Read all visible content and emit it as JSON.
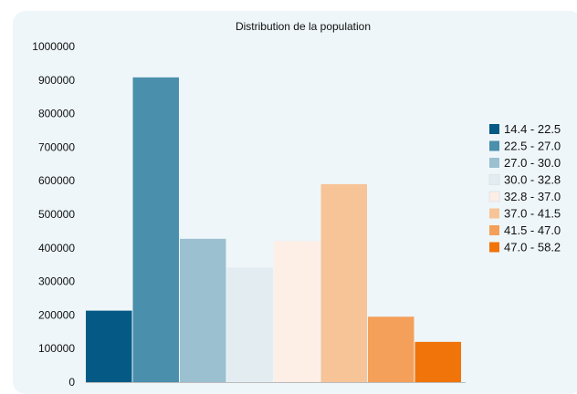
{
  "chart_data": {
    "type": "bar",
    "title": "Distribution de la population",
    "xlabel": "",
    "ylabel": "",
    "ylim": [
      0,
      1000000
    ],
    "yticks": [
      0,
      100000,
      200000,
      300000,
      400000,
      500000,
      600000,
      700000,
      800000,
      900000,
      1000000
    ],
    "grid": false,
    "legend_position": "right",
    "categories": [
      "14.4 - 22.5",
      "22.5 - 27.0",
      "27.0 - 30.0",
      "30.0 - 32.8",
      "32.8 - 37.0",
      "37.0 - 41.5",
      "41.5 - 47.0",
      "47.0 - 58.2"
    ],
    "values": [
      213000,
      908000,
      427000,
      341000,
      420000,
      590000,
      195000,
      120000
    ],
    "colors": [
      "#045a84",
      "#4a8fab",
      "#9bc0d0",
      "#e3edf1",
      "#fdeee6",
      "#f7c497",
      "#f4a05a",
      "#f07409"
    ]
  }
}
